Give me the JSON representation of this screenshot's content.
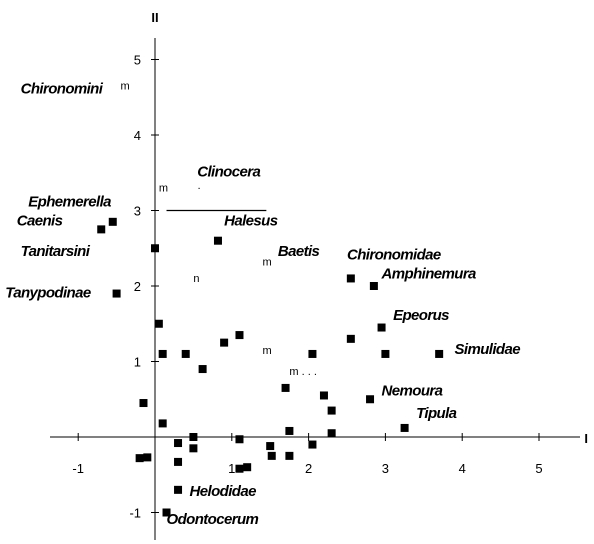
{
  "chart_data": {
    "type": "scatter",
    "title": "",
    "xlabel": "I",
    "ylabel": "II",
    "xlim": [
      -1.4,
      5.7
    ],
    "ylim": [
      -1.25,
      5.3
    ],
    "x_ticks": [
      -1,
      1,
      2,
      3,
      4,
      5
    ],
    "x_tick_labels": [
      "-1",
      "1",
      "2",
      "3",
      "4",
      "5"
    ],
    "y_ticks": [
      -1,
      1,
      2,
      3,
      4,
      5
    ],
    "y_tick_labels": [
      "-1",
      "1",
      "2",
      "3",
      "4",
      "5"
    ],
    "grid": false,
    "legend": "none",
    "marker_color": "#000000",
    "points": [
      {
        "x": -0.7,
        "y": 2.75
      },
      {
        "x": -0.55,
        "y": 2.85
      },
      {
        "x": -0.5,
        "y": 1.9
      },
      {
        "x": 0.0,
        "y": 2.5
      },
      {
        "x": 0.05,
        "y": 1.5
      },
      {
        "x": 0.1,
        "y": 1.1
      },
      {
        "x": 0.4,
        "y": 1.1
      },
      {
        "x": 0.62,
        "y": 0.9
      },
      {
        "x": 0.82,
        "y": 2.6
      },
      {
        "x": 0.9,
        "y": 1.25
      },
      {
        "x": 1.1,
        "y": 1.35
      },
      {
        "x": 1.7,
        "y": 0.65
      },
      {
        "x": 2.05,
        "y": 1.1
      },
      {
        "x": 2.55,
        "y": 1.3
      },
      {
        "x": 2.55,
        "y": 2.1
      },
      {
        "x": 2.85,
        "y": 2.0
      },
      {
        "x": 2.95,
        "y": 1.45
      },
      {
        "x": 3.0,
        "y": 1.1
      },
      {
        "x": 3.7,
        "y": 1.1
      },
      {
        "x": 2.8,
        "y": 0.5
      },
      {
        "x": 3.25,
        "y": 0.12
      },
      {
        "x": -0.15,
        "y": 0.45
      },
      {
        "x": 0.1,
        "y": 0.18
      },
      {
        "x": -0.2,
        "y": -0.28
      },
      {
        "x": -0.1,
        "y": -0.27
      },
      {
        "x": 0.3,
        "y": -0.08
      },
      {
        "x": 0.5,
        "y": 0.0
      },
      {
        "x": 0.5,
        "y": -0.15
      },
      {
        "x": 0.3,
        "y": -0.33
      },
      {
        "x": 1.1,
        "y": -0.03
      },
      {
        "x": 1.1,
        "y": -0.42
      },
      {
        "x": 1.2,
        "y": -0.4
      },
      {
        "x": 1.5,
        "y": -0.12
      },
      {
        "x": 1.52,
        "y": -0.25
      },
      {
        "x": 1.75,
        "y": 0.08
      },
      {
        "x": 1.75,
        "y": -0.25
      },
      {
        "x": 2.05,
        "y": -0.1
      },
      {
        "x": 2.3,
        "y": 0.05
      },
      {
        "x": 2.3,
        "y": 0.35
      },
      {
        "x": 2.2,
        "y": 0.55
      },
      {
        "x": 0.3,
        "y": -0.7
      },
      {
        "x": 0.15,
        "y": -1.0
      }
    ],
    "annotations": [
      {
        "text": "Chironomini",
        "x": -1.75,
        "y": 4.55
      },
      {
        "text": "Clinocera",
        "x": 0.55,
        "y": 3.45
      },
      {
        "text": "Ephemerella",
        "x": -1.65,
        "y": 3.05
      },
      {
        "text": "Caenis",
        "x": -1.8,
        "y": 2.8
      },
      {
        "text": "Tanitarsini",
        "x": -1.75,
        "y": 2.4
      },
      {
        "text": "Halesus",
        "x": 0.9,
        "y": 2.8
      },
      {
        "text": "Baetis",
        "x": 1.6,
        "y": 2.4
      },
      {
        "text": "Chironomidae",
        "x": 2.5,
        "y": 2.35
      },
      {
        "text": "Amphinemura",
        "x": 2.95,
        "y": 2.1
      },
      {
        "text": "Tanypodinae",
        "x": -1.95,
        "y": 1.85
      },
      {
        "text": "Epeorus",
        "x": 3.1,
        "y": 1.55
      },
      {
        "text": "Simulidae",
        "x": 3.9,
        "y": 1.1
      },
      {
        "text": "Nemoura",
        "x": 2.95,
        "y": 0.55
      },
      {
        "text": "Tipula",
        "x": 3.4,
        "y": 0.25
      },
      {
        "text": "Helodidae",
        "x": 0.45,
        "y": -0.78
      },
      {
        "text": "Odontocerum",
        "x": 0.15,
        "y": -1.15
      }
    ],
    "stray_marks": [
      {
        "text": "m",
        "x": -0.45,
        "y": 4.6
      },
      {
        "text": "m",
        "x": 0.05,
        "y": 3.25
      },
      {
        "text": "m",
        "x": 1.4,
        "y": 2.27
      },
      {
        "text": "m",
        "x": 1.4,
        "y": 1.1
      },
      {
        "text": "m . . .",
        "x": 1.75,
        "y": 0.82
      },
      {
        "text": "n",
        "x": 0.5,
        "y": 2.05
      },
      {
        "text": "·",
        "x": 0.55,
        "y": 3.25
      }
    ],
    "reference_segment": {
      "x0": 0.15,
      "x1": 1.45,
      "y": 3.0
    }
  }
}
